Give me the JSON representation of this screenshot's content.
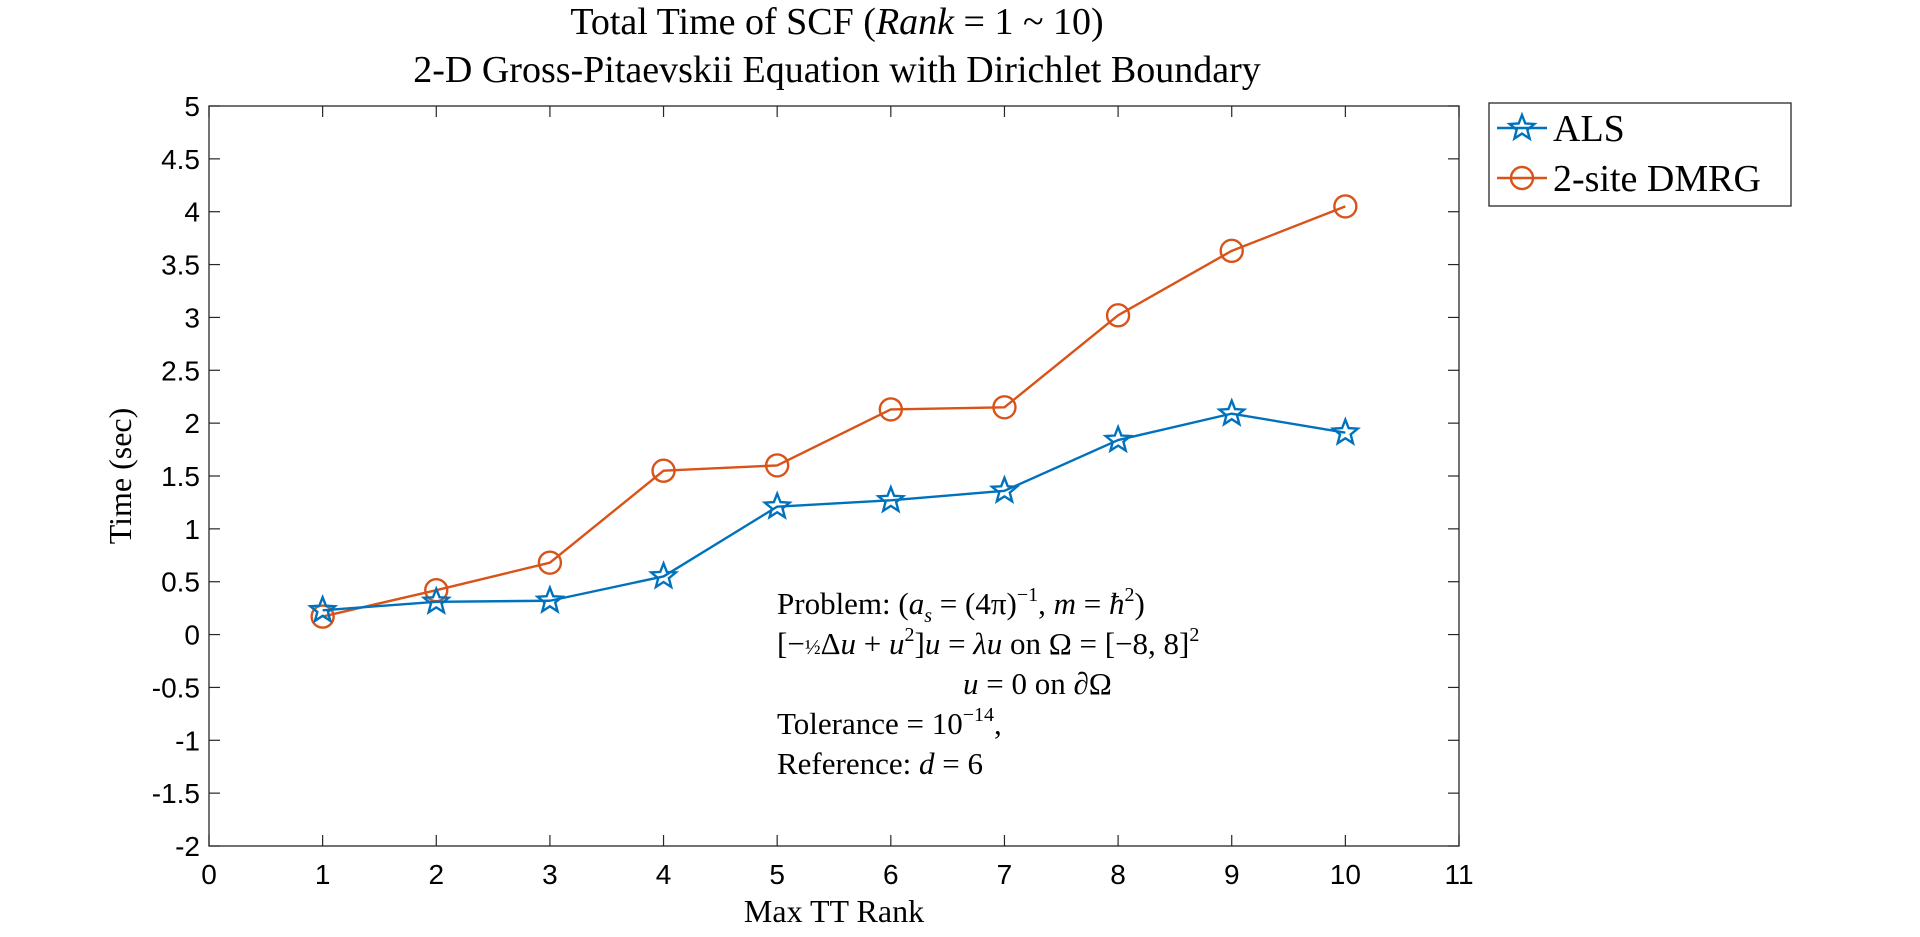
{
  "chart_data": {
    "type": "line",
    "title": "Total Time of SCF (Rank = 1 ~ 10)",
    "subtitle": "2-D Gross-Pitaevskii Equation with Dirichlet Boundary",
    "xlabel": "Max TT Rank",
    "ylabel": "Time (sec)",
    "xlim": [
      0,
      11
    ],
    "ylim": [
      -2,
      5
    ],
    "x_ticks": [
      "0",
      "1",
      "2",
      "3",
      "4",
      "5",
      "6",
      "7",
      "8",
      "9",
      "10",
      "11"
    ],
    "y_ticks": [
      "-2",
      "-1.5",
      "-1",
      "-0.5",
      "0",
      "0.5",
      "1",
      "1.5",
      "2",
      "2.5",
      "3",
      "3.5",
      "4",
      "4.5",
      "5"
    ],
    "grid": false,
    "legend_position": "outside-top-right",
    "x": [
      1,
      2,
      3,
      4,
      5,
      6,
      7,
      8,
      9,
      10
    ],
    "series": [
      {
        "name": "ALS",
        "marker": "star",
        "color": "#0072BD",
        "values": [
          0.23,
          0.31,
          0.32,
          0.55,
          1.21,
          1.27,
          1.36,
          1.84,
          2.09,
          1.91
        ]
      },
      {
        "name": "2-site DMRG",
        "marker": "circle",
        "color": "#D95319",
        "values": [
          0.17,
          0.42,
          0.68,
          1.55,
          1.6,
          2.13,
          2.15,
          3.02,
          3.63,
          4.05
        ]
      }
    ],
    "annotation": [
      "Problem:  (a_s = (4π)^-1,  m = ħ^2)",
      "[-½Δu + u^2]u = λu   on   Ω = [-8, 8]^2",
      "u = 0     on   ∂Ω",
      "Tolerance = 10^-14,",
      "Reference: d = 6"
    ]
  }
}
